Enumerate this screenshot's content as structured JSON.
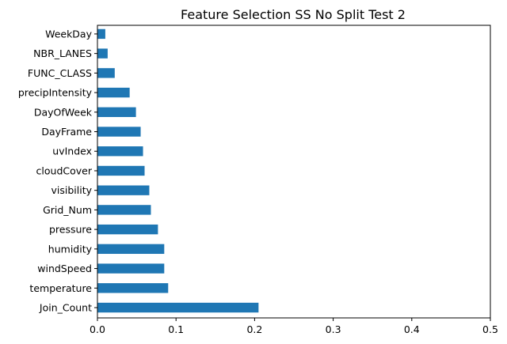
{
  "chart_data": {
    "type": "bar",
    "orientation": "horizontal",
    "title": "Feature Selection SS No Split Test 2",
    "xlabel": "",
    "ylabel": "",
    "xlim": [
      0,
      0.5
    ],
    "xticks": [
      "0.0",
      "0.1",
      "0.2",
      "0.3",
      "0.4",
      "0.5"
    ],
    "xtick_values": [
      0,
      0.1,
      0.2,
      0.3,
      0.4,
      0.5
    ],
    "grid": false,
    "bar_color": "#1f77b4",
    "categories": [
      "Join_Count",
      "temperature",
      "windSpeed",
      "humidity",
      "pressure",
      "Grid_Num",
      "visibility",
      "cloudCover",
      "uvIndex",
      "DayFrame",
      "DayOfWeek",
      "precipIntensity",
      "FUNC_CLASS",
      "NBR_LANES",
      "WeekDay"
    ],
    "values": [
      0.205,
      0.09,
      0.085,
      0.085,
      0.077,
      0.068,
      0.066,
      0.06,
      0.058,
      0.055,
      0.049,
      0.041,
      0.022,
      0.013,
      0.01
    ]
  }
}
